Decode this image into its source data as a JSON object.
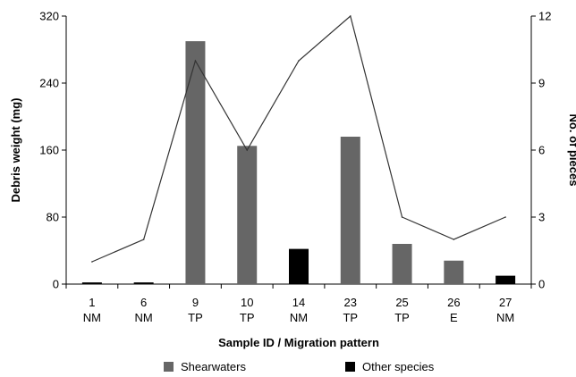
{
  "chart_data": {
    "type": "bar",
    "categories": [
      [
        "1",
        "NM"
      ],
      [
        "6",
        "NM"
      ],
      [
        "9",
        "TP"
      ],
      [
        "10",
        "TP"
      ],
      [
        "14",
        "NM"
      ],
      [
        "23",
        "TP"
      ],
      [
        "25",
        "TP"
      ],
      [
        "26",
        "E"
      ],
      [
        "27",
        "NM"
      ]
    ],
    "bars": [
      {
        "value": 2,
        "group": "Other species"
      },
      {
        "value": 2,
        "group": "Other species"
      },
      {
        "value": 290,
        "group": "Shearwaters"
      },
      {
        "value": 165,
        "group": "Shearwaters"
      },
      {
        "value": 42,
        "group": "Other species"
      },
      {
        "value": 176,
        "group": "Shearwaters"
      },
      {
        "value": 48,
        "group": "Shearwaters"
      },
      {
        "value": 28,
        "group": "Shearwaters"
      },
      {
        "value": 10,
        "group": "Other species"
      }
    ],
    "line_values": [
      1,
      2,
      10,
      6,
      10,
      12,
      3,
      2,
      3
    ],
    "xlabel": "Sample ID / Migration pattern",
    "ylabel_left": "Debris weight (mg)",
    "ylabel_right": "No. of pieces",
    "ylim_left": [
      0,
      320
    ],
    "yticks_left": [
      0,
      80,
      160,
      240,
      320
    ],
    "ylim_right": [
      0,
      12
    ],
    "yticks_right": [
      0,
      3,
      6,
      9,
      12
    ],
    "legend": [
      {
        "label": "Shearwaters",
        "color": "#666666"
      },
      {
        "label": "Other species",
        "color": "#000000"
      }
    ],
    "legend_position": "bottom",
    "grid": false,
    "line_color": "#333333"
  }
}
